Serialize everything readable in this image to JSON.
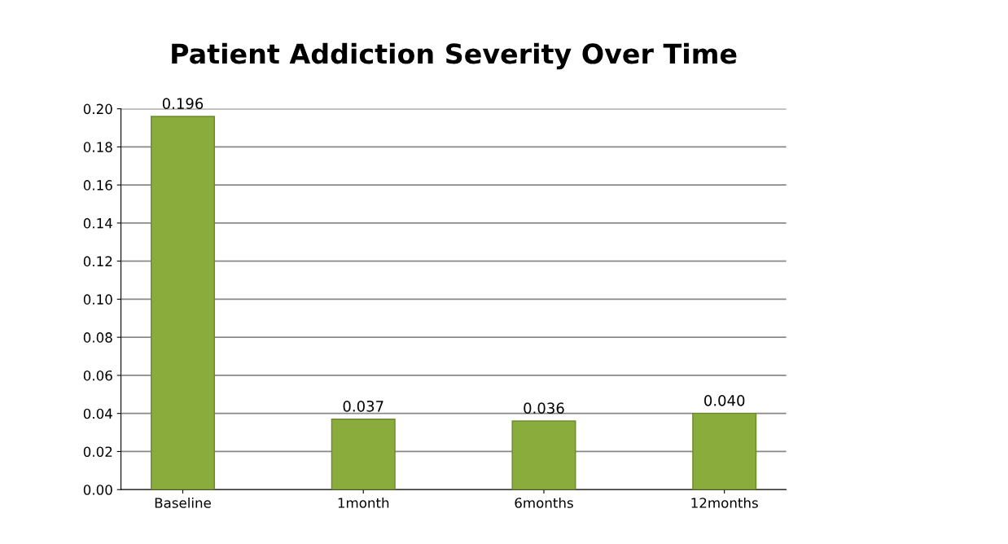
{
  "chart_data": {
    "type": "bar",
    "title": "Patient Addiction Severity Over Time",
    "categories": [
      "Baseline",
      "1month",
      "6months",
      "12months"
    ],
    "values": [
      0.196,
      0.037,
      0.036,
      0.04
    ],
    "value_labels": [
      "0.196",
      "0.037",
      "0.036",
      "0.040"
    ],
    "color": "#8aac3c",
    "ylim": [
      0,
      0.2
    ],
    "yticks": [
      {
        "value": 0,
        "label": "0.00"
      },
      {
        "value": 0.02,
        "label": "0.02"
      },
      {
        "value": 0.04,
        "label": "0.04"
      },
      {
        "value": 0.06,
        "label": "0.06"
      },
      {
        "value": 0.08,
        "label": "0.08"
      },
      {
        "value": 0.1,
        "label": "0.10"
      },
      {
        "value": 0.12,
        "label": "0.12"
      },
      {
        "value": 0.14,
        "label": "0.14"
      },
      {
        "value": 0.16,
        "label": "0.16"
      },
      {
        "value": 0.18,
        "label": "0.18"
      },
      {
        "value": 0.2,
        "label": "0.20"
      }
    ],
    "grid": "y",
    "legend": false
  }
}
